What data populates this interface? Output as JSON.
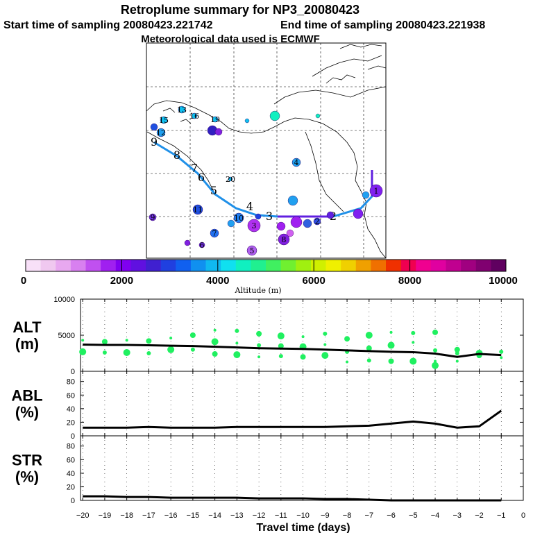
{
  "header": {
    "title": "Retroplume summary for NP3_20080423",
    "start": "Start time of sampling 20080423.221742",
    "end": "End time of sampling 20080423.221938",
    "met": "Meteorological data used is ECMWF"
  },
  "colorbar": {
    "label": "Altitude (m)",
    "ticks": [
      "0",
      "2000",
      "4000",
      "6000",
      "8000",
      "10000"
    ],
    "colors": [
      "#f8e0f8",
      "#f0c8f0",
      "#e8a8f0",
      "#d880f0",
      "#c050f0",
      "#a020f0",
      "#8000f0",
      "#6010e0",
      "#4020d0",
      "#2040e0",
      "#1060f0",
      "#1090f0",
      "#10b8f0",
      "#10e0f0",
      "#10f0c0",
      "#20f090",
      "#40f060",
      "#70f030",
      "#a0f010",
      "#d0f000",
      "#f0f000",
      "#f0d000",
      "#f0a000",
      "#f07000",
      "#f03000",
      "#f00050",
      "#f00090",
      "#e000a0",
      "#c00090",
      "#a00080",
      "#800070",
      "#600060"
    ]
  },
  "map": {
    "plume_labels": [
      {
        "t": "1",
        "color": "#8020f0"
      },
      {
        "t": "2",
        "color": "#3050e0"
      },
      {
        "t": "3",
        "color": "#b030f0"
      },
      {
        "t": "4",
        "color": "#20a0f0"
      },
      {
        "t": "5",
        "color": "#b060f0"
      },
      {
        "t": "6",
        "color": "#7030e0"
      },
      {
        "t": "7",
        "color": "#2070f0"
      },
      {
        "t": "8",
        "color": "#8020e0"
      },
      {
        "t": "9",
        "color": "#7030e0"
      },
      {
        "t": "10",
        "color": "#2080f0"
      },
      {
        "t": "11",
        "color": "#2050e0"
      },
      {
        "t": "12",
        "color": "#20a0f0"
      },
      {
        "t": "13",
        "color": "#10c0f0"
      },
      {
        "t": "15",
        "color": "#10c0f0"
      },
      {
        "t": "16",
        "color": "#10c0f0"
      },
      {
        "t": "19",
        "color": "#10c0f0"
      },
      {
        "t": "20",
        "color": "#10c0f0"
      }
    ],
    "track_labels": [
      "1",
      "2",
      "3",
      "4",
      "5",
      "6",
      "7",
      "8",
      "9"
    ]
  },
  "chart_data": [
    {
      "type": "scatter",
      "panel": "ALT",
      "ylabel_top": "ALT",
      "ylabel_unit": "(m)",
      "ylim": [
        0,
        10000
      ],
      "yticks": [
        "10000",
        "5000",
        "0"
      ],
      "x": [
        -20,
        -19,
        -18,
        -17,
        -16,
        -15,
        -14,
        -13,
        -12,
        -11,
        -10,
        -9,
        -8,
        -7,
        -6,
        -5,
        -4,
        -3,
        -2,
        -1
      ],
      "median": [
        3700,
        3650,
        3650,
        3600,
        3550,
        3500,
        3400,
        3300,
        3200,
        3150,
        3100,
        3000,
        2900,
        2800,
        2700,
        2650,
        2450,
        2000,
        2400,
        2250
      ],
      "points": [
        [
          -20,
          4300
        ],
        [
          -20,
          2700
        ],
        [
          -19,
          4100
        ],
        [
          -19,
          2600
        ],
        [
          -18,
          4300
        ],
        [
          -18,
          2600
        ],
        [
          -17,
          4200
        ],
        [
          -17,
          2500
        ],
        [
          -16,
          4600
        ],
        [
          -16,
          3000
        ],
        [
          -15,
          5000
        ],
        [
          -15,
          3000
        ],
        [
          -14,
          5700
        ],
        [
          -14,
          4100
        ],
        [
          -14,
          2400
        ],
        [
          -13,
          5600
        ],
        [
          -13,
          3900
        ],
        [
          -13,
          2300
        ],
        [
          -12,
          5200
        ],
        [
          -12,
          3600
        ],
        [
          -12,
          2000
        ],
        [
          -11,
          4900
        ],
        [
          -11,
          3500
        ],
        [
          -11,
          2100
        ],
        [
          -10,
          4800
        ],
        [
          -10,
          3400
        ],
        [
          -10,
          2000
        ],
        [
          -9,
          5200
        ],
        [
          -9,
          3700
        ],
        [
          -9,
          2200
        ],
        [
          -8,
          4500
        ],
        [
          -8,
          2700
        ],
        [
          -8,
          1300
        ],
        [
          -7,
          5000
        ],
        [
          -7,
          3200
        ],
        [
          -7,
          1500
        ],
        [
          -6,
          5400
        ],
        [
          -6,
          3600
        ],
        [
          -6,
          1400
        ],
        [
          -5,
          5300
        ],
        [
          -5,
          4000
        ],
        [
          -5,
          1400
        ],
        [
          -4,
          5400
        ],
        [
          -4,
          2900
        ],
        [
          -4,
          1400
        ],
        [
          -4,
          800
        ],
        [
          -3,
          3000
        ],
        [
          -3,
          2500
        ],
        [
          -3,
          1400
        ],
        [
          -2,
          2500
        ],
        [
          -2,
          2200
        ],
        [
          -1,
          2700
        ],
        [
          -1,
          1900
        ]
      ],
      "point_color": "#20f060"
    },
    {
      "type": "line",
      "panel": "ABL",
      "ylabel_top": "ABL",
      "ylabel_unit": "(%)",
      "ylim": [
        0,
        95
      ],
      "yticks": [
        "80",
        "60",
        "40",
        "20",
        "0"
      ],
      "x": [
        -20,
        -19,
        -18,
        -17,
        -16,
        -15,
        -14,
        -13,
        -12,
        -11,
        -10,
        -9,
        -8,
        -7,
        -6,
        -5,
        -4,
        -3,
        -2,
        -1
      ],
      "values": [
        12,
        12,
        12,
        13,
        12,
        12,
        12,
        13,
        13,
        13,
        13,
        13,
        14,
        15,
        18,
        21,
        18,
        12,
        14,
        37
      ]
    },
    {
      "type": "line",
      "panel": "STR",
      "ylabel_top": "STR",
      "ylabel_unit": "(%)",
      "ylim": [
        0,
        95
      ],
      "yticks": [
        "80",
        "60",
        "40",
        "20",
        "0"
      ],
      "x": [
        -20,
        -19,
        -18,
        -17,
        -16,
        -15,
        -14,
        -13,
        -12,
        -11,
        -10,
        -9,
        -8,
        -7,
        -6,
        -5,
        -4,
        -3,
        -2,
        -1
      ],
      "values": [
        6,
        6,
        5,
        5,
        4,
        4,
        4,
        4,
        3,
        3,
        3,
        2,
        2,
        1,
        0,
        0,
        0,
        0,
        0,
        0
      ]
    }
  ],
  "x_axis": {
    "label": "Travel time (days)",
    "ticks": [
      "−20",
      "−19",
      "−18",
      "−17",
      "−16",
      "−15",
      "−14",
      "−13",
      "−12",
      "−11",
      "−10",
      "−9",
      "−8",
      "−7",
      "−6",
      "−5",
      "−4",
      "−3",
      "−2",
      "−1",
      "0"
    ]
  }
}
